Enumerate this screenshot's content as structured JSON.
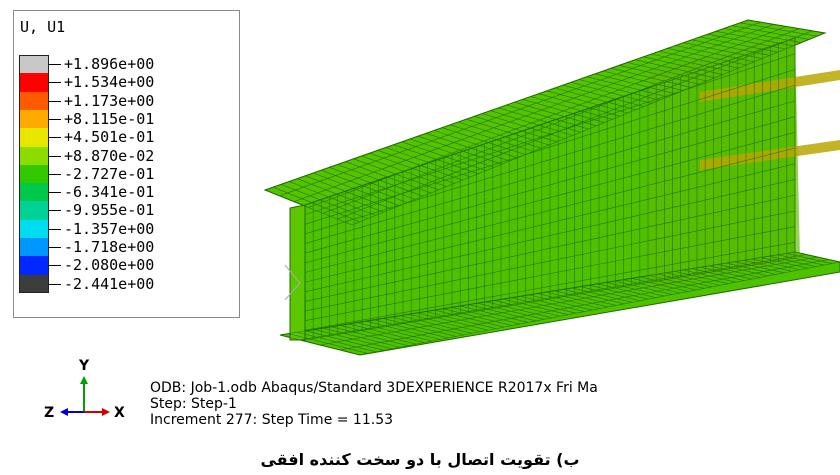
{
  "legend": {
    "title": "U, U1",
    "entries": [
      {
        "label": "+1.896e+00",
        "color": "#c8c8c8"
      },
      {
        "label": "+1.534e+00",
        "color": "#ff0000"
      },
      {
        "label": "+1.173e+00",
        "color": "#ff5a00"
      },
      {
        "label": "+8.115e-01",
        "color": "#ffaa00"
      },
      {
        "label": "+4.501e-01",
        "color": "#e6e600"
      },
      {
        "label": "+8.870e-02",
        "color": "#8cdc00"
      },
      {
        "label": "-2.727e-01",
        "color": "#32c800"
      },
      {
        "label": "-6.341e-01",
        "color": "#00c84b"
      },
      {
        "label": "-9.955e-01",
        "color": "#00d296"
      },
      {
        "label": "-1.357e+00",
        "color": "#00dcf0"
      },
      {
        "label": "-1.718e+00",
        "color": "#0096ff"
      },
      {
        "label": "-2.080e+00",
        "color": "#0028ff"
      },
      {
        "label": "-2.441e+00",
        "color": "#3c3c3c"
      }
    ]
  },
  "triad": {
    "y": "Y",
    "z": "Z",
    "x": "X"
  },
  "info": {
    "odb": "ODB: Job-1.odb    Abaqus/Standard 3DEXPERIENCE R2017x    Fri Ma",
    "step": "Step: Step-1",
    "increment": "Increment     277: Step Time =     11.53"
  },
  "caption": "ب) تقویت اتصال با دو سخت کننده افقی",
  "colors": {
    "mesh": "#1f6b00",
    "beam_face": "#4fc200",
    "beam_light": "#62d000",
    "stiffener": "#c8b400"
  }
}
